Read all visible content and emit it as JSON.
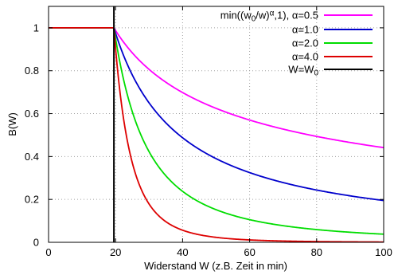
{
  "chart_data": {
    "type": "line",
    "ylabel": "B(W)",
    "xlabel": "Widerstand W (z.B. Zeit in min)",
    "xlim": [
      0,
      100
    ],
    "ylim": [
      0,
      1.1
    ],
    "xticks": [
      0,
      20,
      40,
      60,
      80,
      100
    ],
    "yticks": [
      0,
      0.2,
      0.4,
      0.6,
      0.8,
      1
    ],
    "ytick_labels": [
      "0",
      "0.2",
      "0.4",
      "0.6",
      "0.8",
      "1"
    ],
    "grid": true,
    "legend_position": "top-right",
    "w0": 19.5,
    "series": [
      {
        "name_parts": {
          "pre": "min((w",
          "sub1": "0",
          "mid": "/w)",
          "sup": "α",
          "post": ",1), α=0.5"
        },
        "alpha": 0.5,
        "color": "#ff00ff",
        "x": [
          0,
          19.5,
          25,
          30,
          40,
          50,
          60,
          70,
          80,
          90,
          100
        ],
        "y": [
          1,
          1,
          0.883,
          0.806,
          0.698,
          0.624,
          0.57,
          0.528,
          0.494,
          0.465,
          0.442
        ]
      },
      {
        "name_parts": {
          "pre": "α=1.0"
        },
        "alpha": 1.0,
        "color": "#0000cc",
        "x": [
          0,
          19.5,
          25,
          30,
          40,
          50,
          60,
          70,
          80,
          90,
          100
        ],
        "y": [
          1,
          1,
          0.78,
          0.65,
          0.488,
          0.39,
          0.325,
          0.279,
          0.244,
          0.217,
          0.195
        ]
      },
      {
        "name_parts": {
          "pre": "α=2.0"
        },
        "alpha": 2.0,
        "color": "#00dd00",
        "x": [
          0,
          19.5,
          25,
          30,
          40,
          50,
          60,
          70,
          80,
          90,
          100
        ],
        "y": [
          1,
          1,
          0.608,
          0.423,
          0.238,
          0.152,
          0.106,
          0.078,
          0.059,
          0.047,
          0.038
        ]
      },
      {
        "name_parts": {
          "pre": "α=4.0"
        },
        "alpha": 4.0,
        "color": "#dd0000",
        "x": [
          0,
          19.5,
          25,
          30,
          40,
          50,
          60,
          70,
          80,
          90,
          100
        ],
        "y": [
          1,
          1,
          0.37,
          0.178,
          0.056,
          0.023,
          0.011,
          0.006,
          0.004,
          0.002,
          0.001
        ]
      },
      {
        "name_parts": {
          "pre": "W=W",
          "sub1": "0"
        },
        "type": "vertical-line",
        "color": "#000000",
        "x": [
          19.5,
          19.5
        ],
        "y": [
          0,
          1.1
        ]
      }
    ]
  }
}
